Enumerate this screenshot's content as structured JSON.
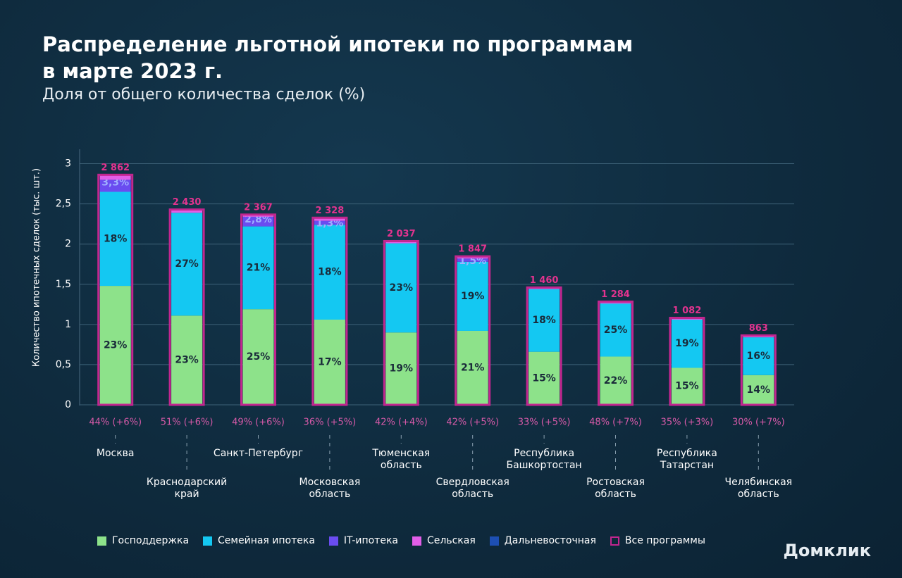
{
  "chart_data": {
    "type": "stacked-bar",
    "title": "Распределение льготной ипотеки по программам\nв марте 2023 г.",
    "subtitle": "Доля от общего количества сделок (%)",
    "y_label": "Количество ипотечных сделок (тыс. шт.)",
    "categories": [
      "Москва",
      "Краснодарский\nкрай",
      "Санкт-Петербург",
      "Московская\nобласть",
      "Тюменская\nобласть",
      "Свердловская\nобласть",
      "Республика\nБашкортостан",
      "Ростовская\nобласть",
      "Республика\nТатарстан",
      "Челябинская\nобласть"
    ],
    "notes": [
      "44% (+6%)",
      "51% (+6%)",
      "49% (+6%)",
      "36% (+5%)",
      "42% (+4%)",
      "42% (+5%)",
      "33% (+5%)",
      "48% (+7%)",
      "35% (+3%)",
      "30% (+7%)"
    ],
    "series": [
      {
        "name": "Господдержка",
        "color": "#8de28a",
        "values": [
          1.48,
          1.11,
          1.19,
          1.06,
          0.9,
          0.92,
          0.66,
          0.6,
          0.46,
          0.37
        ],
        "share_labels": [
          "23%",
          "23%",
          "25%",
          "17%",
          "19%",
          "21%",
          "15%",
          "22%",
          "15%",
          "14%"
        ]
      },
      {
        "name": "Семейная ипотека",
        "color": "#14c8f2",
        "values": [
          1.17,
          1.28,
          1.03,
          1.18,
          1.11,
          0.86,
          0.78,
          0.66,
          0.6,
          0.47
        ],
        "share_labels": [
          "18%",
          "27%",
          "21%",
          "18%",
          "23%",
          "19%",
          "18%",
          "25%",
          "19%",
          "16%"
        ]
      },
      {
        "name": "IT-ипотека",
        "color": "#6a4cf0",
        "values": [
          0.15,
          null,
          0.12,
          0.05,
          null,
          0.04,
          null,
          null,
          null,
          null
        ],
        "share_labels": [
          "3,3%",
          null,
          "2,8%",
          "1,3%",
          null,
          "1,5%",
          null,
          null,
          null,
          null
        ]
      },
      {
        "name": "Сельская",
        "color": "#e25ee8",
        "values": [
          0.06,
          0.04,
          0.03,
          0.04,
          0.03,
          0.03,
          0.02,
          0.02,
          0.02,
          0.02
        ]
      },
      {
        "name": "Дальневосточная",
        "color": "#1d4fb3",
        "values": [
          null,
          null,
          null,
          null,
          null,
          null,
          null,
          null,
          null,
          null
        ]
      }
    ],
    "totals": {
      "name": "Все программы",
      "color": "#c2268f",
      "values": [
        2.862,
        2.43,
        2.367,
        2.328,
        2.037,
        1.847,
        1.46,
        1.284,
        1.082,
        0.863
      ],
      "value_labels": [
        "2 862",
        "2 430",
        "2 367",
        "2 328",
        "2 037",
        "1 847",
        "1 460",
        "1 284",
        "1 082",
        "863"
      ]
    },
    "ylim": [
      0,
      3.18
    ],
    "yticks": [
      0,
      {
        "value": 0.5,
        "label": "0,5"
      },
      1,
      {
        "value": 1.5,
        "label": "1,5"
      },
      2,
      {
        "value": 2.5,
        "label": "2,5"
      },
      3
    ],
    "grid": true,
    "logo": "Домклик"
  }
}
